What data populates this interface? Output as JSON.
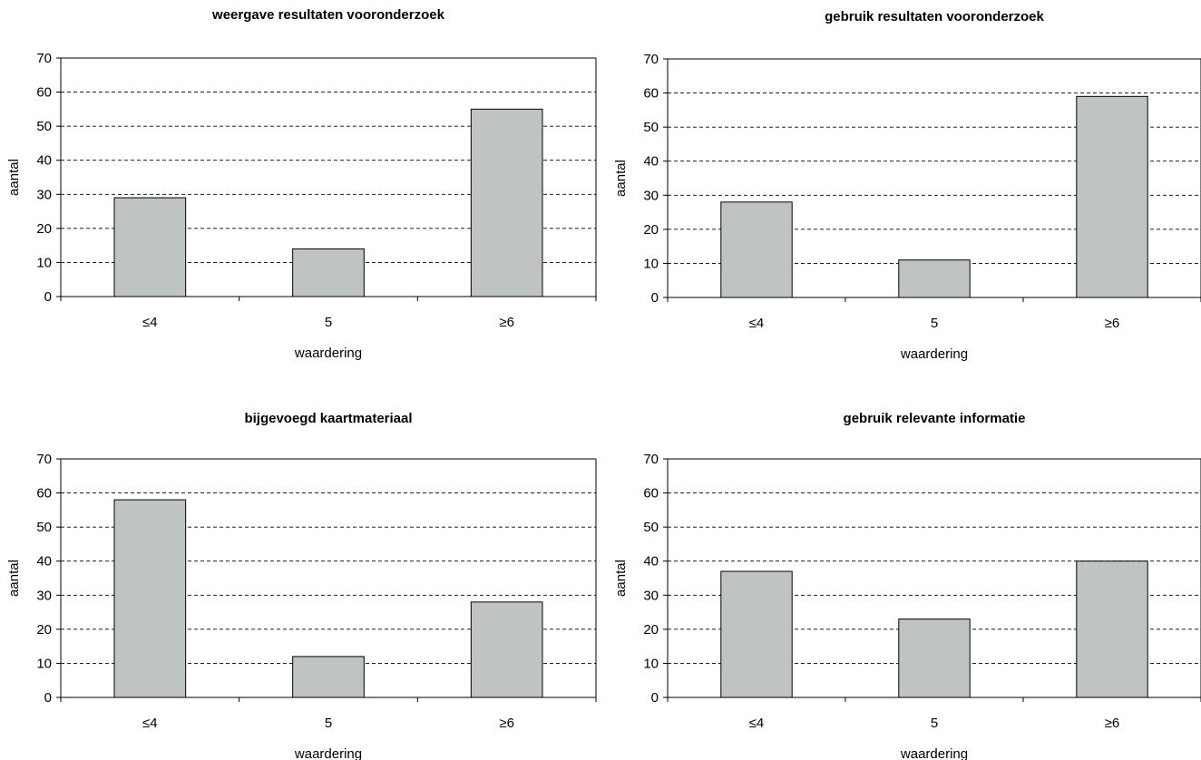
{
  "chart_data": [
    {
      "type": "bar",
      "title": "weergave resultaten vooronderzoek",
      "xlabel": "waardering",
      "ylabel": "aantal",
      "categories": [
        "≤4",
        "5",
        "≥6"
      ],
      "values": [
        29,
        14,
        55
      ],
      "ylim": [
        0,
        70
      ],
      "yticks": [
        "0",
        "10",
        "20",
        "30",
        "40",
        "50",
        "60",
        "70"
      ],
      "grid": "dashed horizontal",
      "bar_color": "#bfc4c2"
    },
    {
      "type": "bar",
      "title": "gebruik resultaten vooronderzoek",
      "xlabel": "waardering",
      "ylabel": "aantal",
      "categories": [
        "≤4",
        "5",
        "≥6"
      ],
      "values": [
        28,
        11,
        59
      ],
      "ylim": [
        0,
        70
      ],
      "yticks": [
        "0",
        "10",
        "20",
        "30",
        "40",
        "50",
        "60",
        "70"
      ],
      "grid": "dashed horizontal",
      "bar_color": "#bfc4c2"
    },
    {
      "type": "bar",
      "title": "bijgevoegd kaartmateriaal",
      "xlabel": "waardering",
      "ylabel": "aantal",
      "categories": [
        "≤4",
        "5",
        "≥6"
      ],
      "values": [
        58,
        12,
        28
      ],
      "ylim": [
        0,
        70
      ],
      "yticks": [
        "0",
        "10",
        "20",
        "30",
        "40",
        "50",
        "60",
        "70"
      ],
      "grid": "dashed horizontal",
      "bar_color": "#bfc4c2"
    },
    {
      "type": "bar",
      "title": "gebruik relevante informatie",
      "xlabel": "waardering",
      "ylabel": "aantal",
      "categories": [
        "≤4",
        "5",
        "≥6"
      ],
      "values": [
        37,
        23,
        40
      ],
      "ylim": [
        0,
        70
      ],
      "yticks": [
        "0",
        "10",
        "20",
        "30",
        "40",
        "50",
        "60",
        "70"
      ],
      "grid": "dashed horizontal",
      "bar_color": "#bfc4c2"
    }
  ]
}
